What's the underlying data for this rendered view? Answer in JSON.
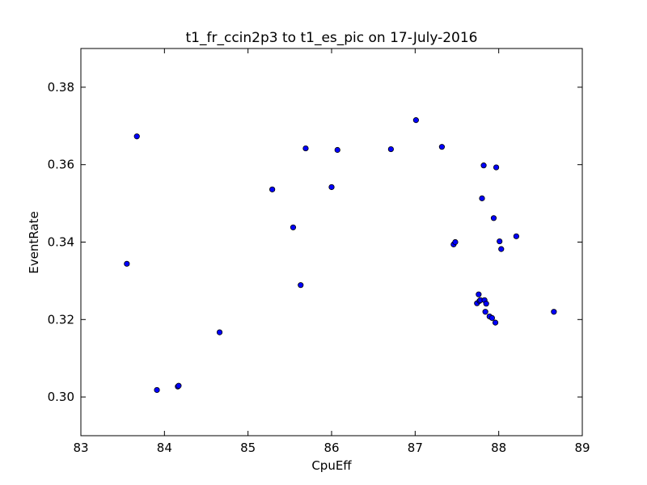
{
  "chart_data": {
    "type": "scatter",
    "title": "t1_fr_ccin2p3 to t1_es_pic on 17-July-2016",
    "xlabel": "CpuEff",
    "ylabel": "EventRate",
    "xlim": [
      83,
      89
    ],
    "ylim": [
      0.29,
      0.39
    ],
    "xticks": [
      83,
      84,
      85,
      86,
      87,
      88,
      89
    ],
    "yticks": [
      0.3,
      0.32,
      0.34,
      0.36,
      0.38
    ],
    "xtick_labels": [
      "83",
      "84",
      "85",
      "86",
      "87",
      "88",
      "89"
    ],
    "ytick_labels": [
      "0.30",
      "0.32",
      "0.34",
      "0.36",
      "0.38"
    ],
    "grid": false,
    "marker_color": "#0000ff",
    "marker_edge_color": "#000000",
    "points": [
      {
        "x": 83.55,
        "y": 0.3344
      },
      {
        "x": 83.67,
        "y": 0.3673
      },
      {
        "x": 83.91,
        "y": 0.3018
      },
      {
        "x": 84.16,
        "y": 0.3027
      },
      {
        "x": 84.17,
        "y": 0.3029
      },
      {
        "x": 84.66,
        "y": 0.3167
      },
      {
        "x": 85.29,
        "y": 0.3536
      },
      {
        "x": 85.54,
        "y": 0.3438
      },
      {
        "x": 85.63,
        "y": 0.3289
      },
      {
        "x": 85.69,
        "y": 0.3642
      },
      {
        "x": 86.0,
        "y": 0.3542
      },
      {
        "x": 86.07,
        "y": 0.3638
      },
      {
        "x": 86.71,
        "y": 0.364
      },
      {
        "x": 87.01,
        "y": 0.3715
      },
      {
        "x": 87.32,
        "y": 0.3646
      },
      {
        "x": 87.46,
        "y": 0.3394
      },
      {
        "x": 87.48,
        "y": 0.34
      },
      {
        "x": 87.74,
        "y": 0.3242
      },
      {
        "x": 87.76,
        "y": 0.3265
      },
      {
        "x": 87.77,
        "y": 0.3248
      },
      {
        "x": 87.78,
        "y": 0.325
      },
      {
        "x": 87.8,
        "y": 0.3513
      },
      {
        "x": 87.82,
        "y": 0.3598
      },
      {
        "x": 87.83,
        "y": 0.325
      },
      {
        "x": 87.84,
        "y": 0.322
      },
      {
        "x": 87.85,
        "y": 0.3241
      },
      {
        "x": 87.89,
        "y": 0.3208
      },
      {
        "x": 87.92,
        "y": 0.3204
      },
      {
        "x": 87.94,
        "y": 0.3462
      },
      {
        "x": 87.96,
        "y": 0.3192
      },
      {
        "x": 87.97,
        "y": 0.3593
      },
      {
        "x": 88.01,
        "y": 0.3402
      },
      {
        "x": 88.03,
        "y": 0.3382
      },
      {
        "x": 88.21,
        "y": 0.3415
      },
      {
        "x": 88.66,
        "y": 0.322
      }
    ]
  }
}
